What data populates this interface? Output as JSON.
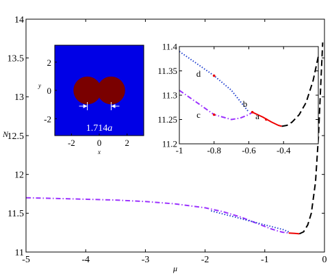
{
  "chart_data": [
    {
      "type": "line",
      "xlabel": "μ",
      "ylabel": "N",
      "xlim": [
        -5,
        0
      ],
      "ylim": [
        11,
        14
      ],
      "xticks": [
        -5,
        -4,
        -3,
        -2,
        -1,
        0
      ],
      "yticks": [
        11,
        11.5,
        12,
        12.5,
        13,
        13.5,
        14
      ],
      "xtick_labels": [
        "-5",
        "-4",
        "-3",
        "-2",
        "-1",
        "0"
      ],
      "ytick_labels": [
        "11",
        "11.5",
        "12",
        "12.5",
        "13",
        "13.5",
        "14"
      ],
      "grid": false,
      "series": [
        {
          "style": "dashdot",
          "color": "#9b30ff",
          "x": [
            -5.0,
            -4.5,
            -4.0,
            -3.5,
            -3.0,
            -2.5,
            -2.0,
            -1.7,
            -1.4,
            -1.2,
            -1.0,
            -0.9,
            -0.8,
            -0.7,
            -0.6
          ],
          "y": [
            11.7,
            11.69,
            11.68,
            11.67,
            11.65,
            11.62,
            11.57,
            11.52,
            11.45,
            11.39,
            11.33,
            11.3,
            11.275,
            11.255,
            11.245
          ]
        },
        {
          "style": "dotted",
          "color": "#1f3fcf",
          "x": [
            -1.9,
            -1.6,
            -1.3,
            -1.1,
            -0.9,
            -0.7,
            -0.6
          ],
          "y": [
            11.53,
            11.47,
            11.41,
            11.37,
            11.33,
            11.29,
            11.26
          ]
        },
        {
          "style": "solid",
          "color": "#ee0000",
          "x": [
            -0.6,
            -0.5,
            -0.42
          ],
          "y": [
            11.245,
            11.24,
            11.235
          ]
        },
        {
          "style": "dashed",
          "color": "#000000",
          "x": [
            -0.42,
            -0.35,
            -0.28,
            -0.22,
            -0.15,
            -0.1,
            -0.06,
            -0.03
          ],
          "y": [
            11.235,
            11.26,
            11.35,
            11.5,
            11.9,
            12.5,
            13.2,
            13.7
          ]
        }
      ]
    },
    {
      "type": "line",
      "xlim": [
        -1,
        -0.2
      ],
      "ylim": [
        11.2,
        11.4
      ],
      "xticks": [
        -1,
        -0.8,
        -0.6,
        -0.4
      ],
      "yticks": [
        11.2,
        11.25,
        11.3,
        11.35,
        11.4
      ],
      "xtick_labels": [
        "-1",
        "-0.8",
        "-0.6",
        "-0.4"
      ],
      "ytick_labels": [
        "11.2",
        "11.25",
        "11.3",
        "11.35",
        "11.4"
      ],
      "annotations": [
        "d",
        "b",
        "c",
        "a"
      ],
      "series": [
        {
          "style": "dotted",
          "color": "#1f3fcf",
          "x": [
            -1.0,
            -0.9,
            -0.8,
            -0.7,
            -0.6
          ],
          "y": [
            11.39,
            11.365,
            11.34,
            11.31,
            11.265
          ]
        },
        {
          "style": "dashdot",
          "color": "#9b30ff",
          "x": [
            -1.0,
            -0.9,
            -0.8,
            -0.7,
            -0.65,
            -0.6,
            -0.58
          ],
          "y": [
            11.31,
            11.285,
            11.26,
            11.25,
            11.253,
            11.26,
            11.265
          ]
        },
        {
          "style": "solid",
          "color": "#ee0000",
          "x": [
            -0.58,
            -0.52,
            -0.47,
            -0.43,
            -0.41
          ],
          "y": [
            11.265,
            11.255,
            11.245,
            11.238,
            11.236
          ]
        },
        {
          "style": "dashed",
          "color": "#000000",
          "x": [
            -0.41,
            -0.38,
            -0.35,
            -0.31,
            -0.27,
            -0.23,
            -0.2
          ],
          "y": [
            11.236,
            11.238,
            11.245,
            11.26,
            11.285,
            11.33,
            11.38
          ]
        }
      ]
    },
    {
      "type": "heatmap",
      "xlabel": "x",
      "ylabel": "y",
      "xticks": [
        -2,
        0,
        2
      ],
      "yticks": [
        -2,
        0,
        2
      ],
      "xtick_labels": [
        "-2",
        "0",
        "2"
      ],
      "ytick_labels": [
        "-2",
        "0",
        "2"
      ],
      "xlim": [
        -3.2,
        3.2
      ],
      "ylim": [
        -3.2,
        3.2
      ],
      "annotation": "1.714",
      "annotation_symbol": "a",
      "colors": {
        "background": "#0000e6",
        "disk": "#7a0000"
      }
    }
  ]
}
